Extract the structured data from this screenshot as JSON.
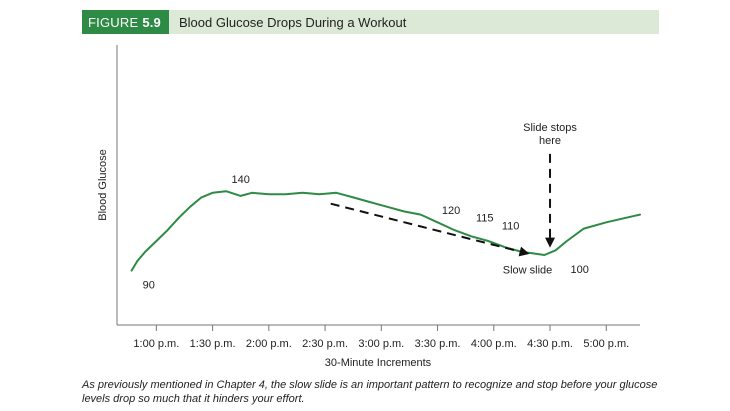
{
  "figure": {
    "number_prefix": "FIGURE",
    "number": "5.9",
    "title": "Blood Glucose Drops During a Workout"
  },
  "caption": "As previously mentioned in Chapter 4, the slow slide is an important pattern to recognize and stop before your glucose levels drop so much that it hinders your effort.",
  "chart_data": {
    "type": "line",
    "title": "Blood Glucose Drops During a Workout",
    "xlabel": "30-Minute Increments",
    "ylabel": "Blood Glucose",
    "x_ticks": [
      "1:00 p.m.",
      "1:30 p.m.",
      "2:00 p.m.",
      "2:30 p.m.",
      "3:00 p.m.",
      "3:30 p.m.",
      "4:00 p.m.",
      "4:30 p.m.",
      "5:00 p.m."
    ],
    "xlim_hours": [
      12.65,
      17.3
    ],
    "ylim": [
      55,
      235
    ],
    "grid": false,
    "line_color": "#2e8b45",
    "series": [
      {
        "x_hours": [
          12.78,
          12.83,
          12.9,
          13.0,
          13.1,
          13.2,
          13.3,
          13.4,
          13.5,
          13.62,
          13.75,
          13.85,
          14.0,
          14.15,
          14.3,
          14.45,
          14.6,
          14.75,
          14.9,
          15.0,
          15.2,
          15.35,
          15.5,
          15.65,
          15.8,
          15.95,
          16.1,
          16.25,
          16.35,
          16.45,
          16.55,
          16.65,
          16.8,
          17.0,
          17.3
        ],
        "y": [
          90,
          96,
          102,
          109,
          116,
          124,
          131,
          137,
          140,
          141,
          138,
          140,
          139,
          139,
          140,
          139,
          140,
          137,
          134,
          132,
          128,
          126,
          121,
          116,
          112,
          109,
          105,
          102,
          101,
          100,
          103,
          109,
          117,
          121,
          126
        ]
      }
    ],
    "data_labels": [
      {
        "x_hours": 13.75,
        "y": 140,
        "text": "140"
      },
      {
        "x_hours": 15.62,
        "y": 120,
        "text": "120"
      },
      {
        "x_hours": 15.92,
        "y": 115,
        "text": "115"
      },
      {
        "x_hours": 16.15,
        "y": 110,
        "text": "110"
      },
      {
        "x_hours": 16.63,
        "y": 100,
        "text": "100"
      },
      {
        "x_hours": 12.87,
        "y": 90,
        "text": "90"
      }
    ],
    "annotations": [
      {
        "type": "arrow",
        "style": "dashed",
        "text": "Slow slide",
        "from": {
          "x_hours": 14.55,
          "y": 133
        },
        "to": {
          "x_hours": 16.3,
          "y": 101
        }
      },
      {
        "type": "arrow",
        "style": "dashed",
        "text_lines": [
          "Slide stops",
          "here"
        ],
        "from": {
          "x_hours": 16.5,
          "y": 165
        },
        "to": {
          "x_hours": 16.5,
          "y": 106
        }
      }
    ]
  }
}
